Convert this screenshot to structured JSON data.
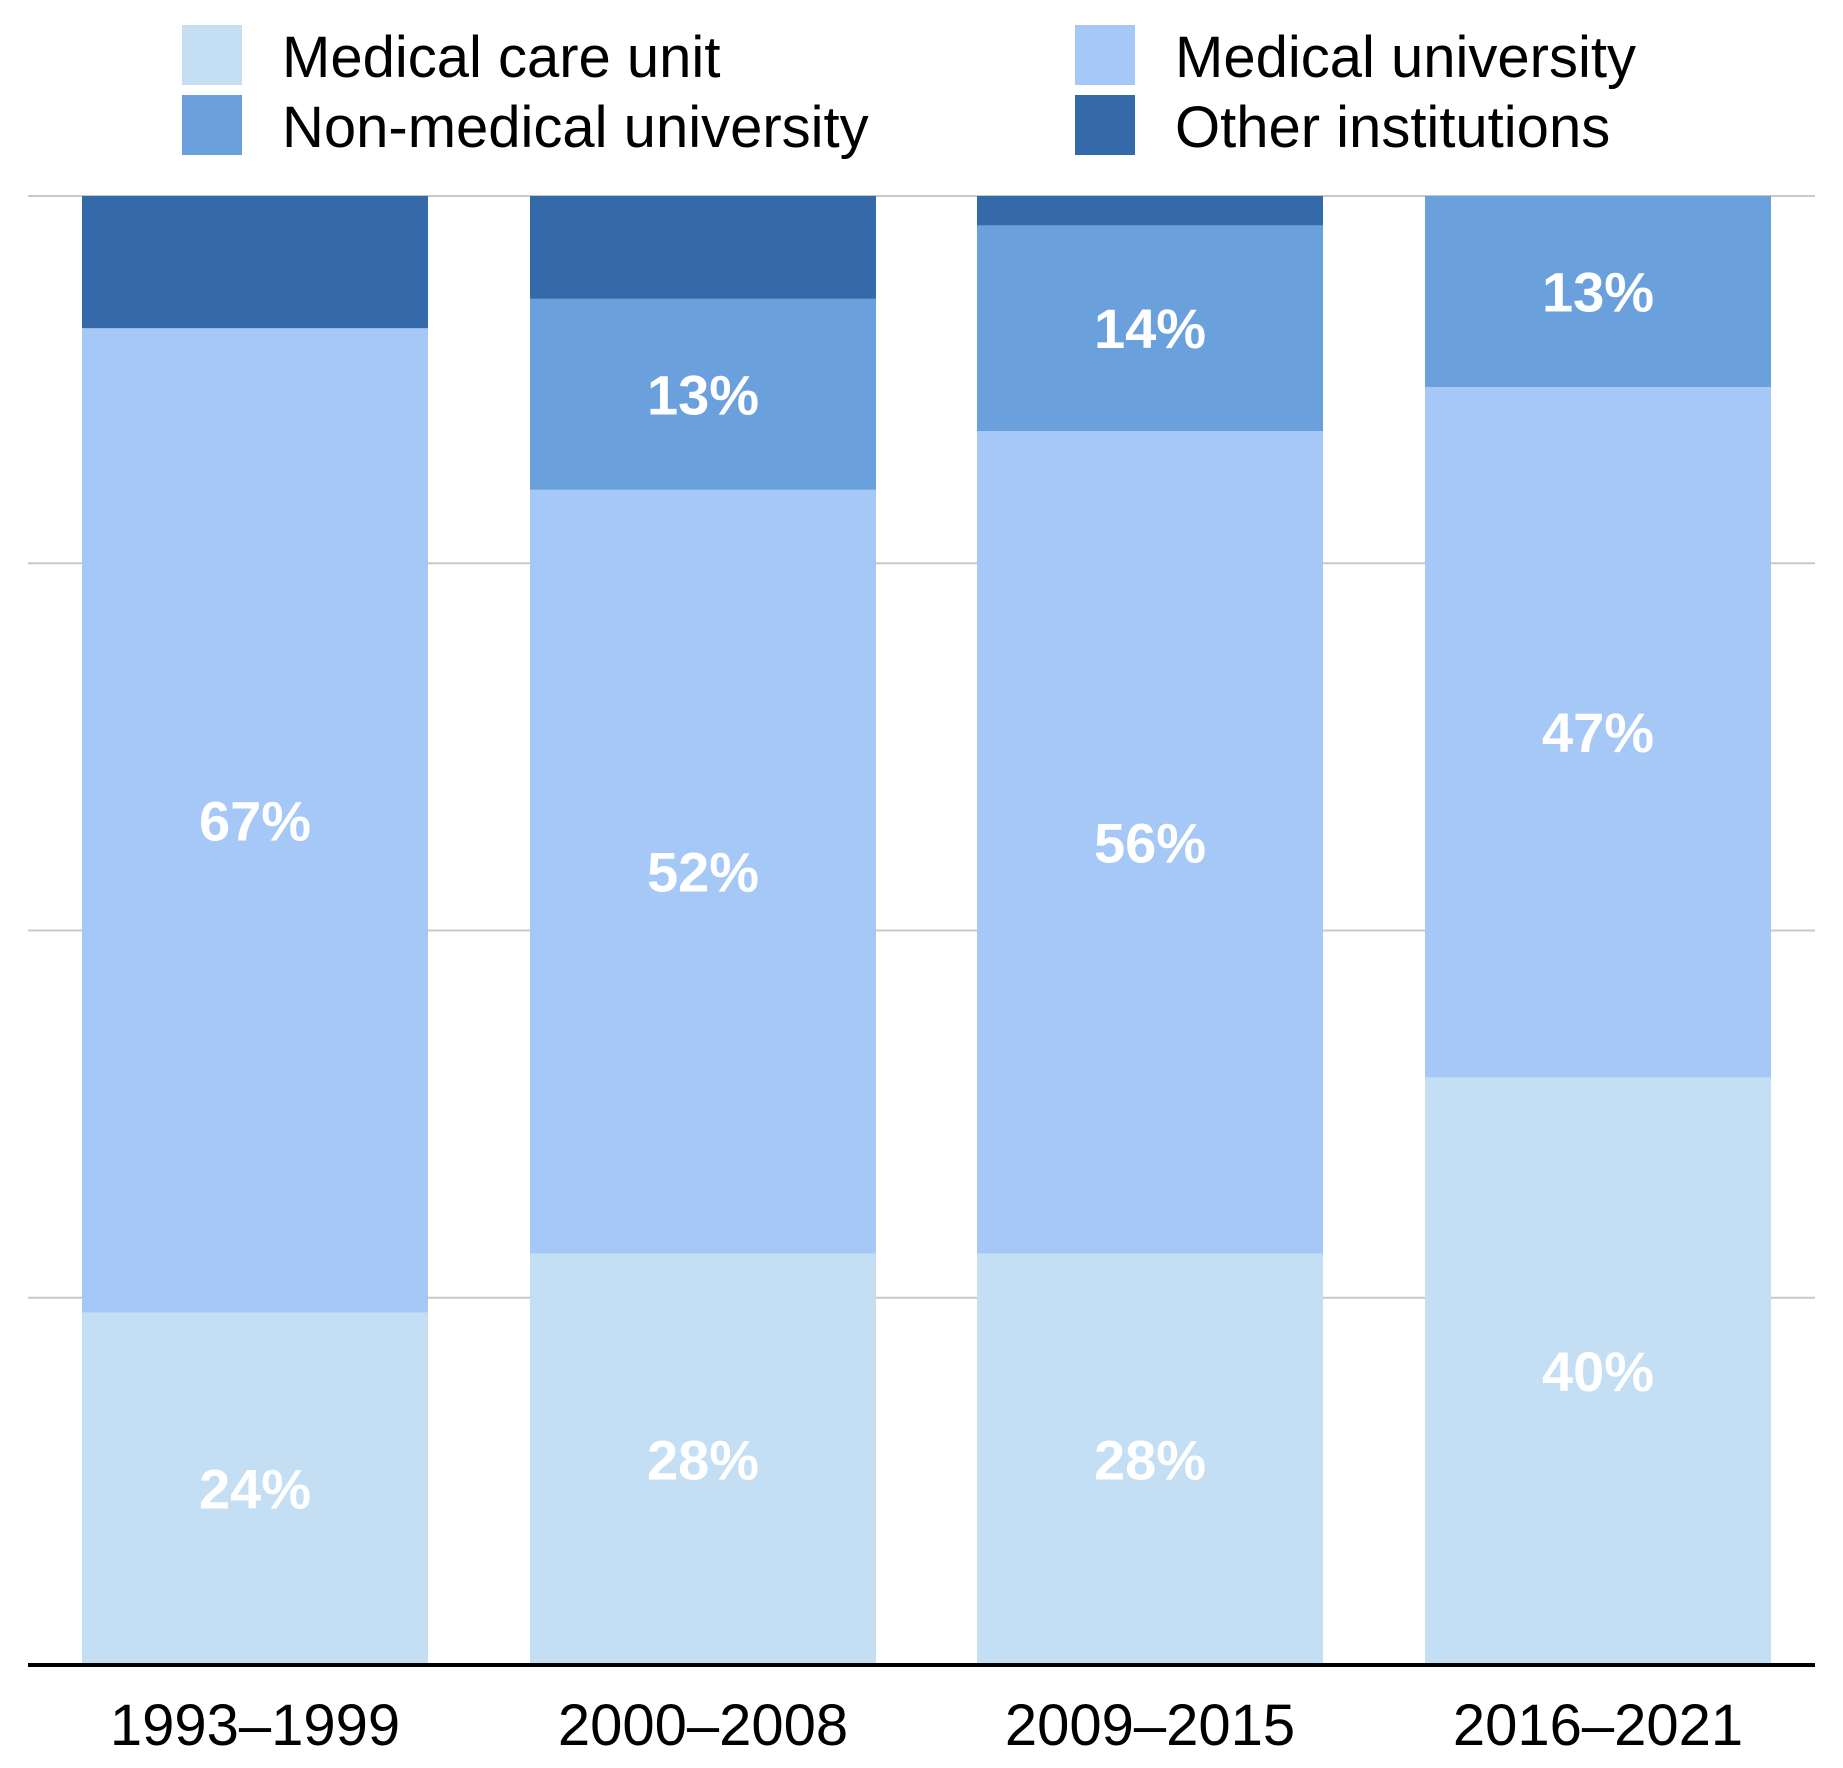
{
  "chart_data": {
    "type": "bar",
    "stacked": true,
    "title": "",
    "xlabel": "",
    "ylabel": "",
    "ylim": [
      0,
      100
    ],
    "grid": true,
    "legend_position": "top",
    "categories": [
      "1993–1999",
      "2000–2008",
      "2009–2015",
      "2016–2021"
    ],
    "series": [
      {
        "name": "Medical care unit",
        "color": "#c4dff4",
        "values": [
          24,
          28,
          28,
          40
        ],
        "labels": [
          "24%",
          "28%",
          "28%",
          "40%"
        ]
      },
      {
        "name": "Medical university",
        "color": "#a5c8f6",
        "values": [
          67,
          52,
          56,
          47
        ],
        "labels": [
          "67%",
          "52%",
          "56%",
          "47%"
        ]
      },
      {
        "name": "Non-medical university",
        "color": "#6aa0dc",
        "values": [
          0,
          13,
          14,
          13
        ],
        "labels": [
          "",
          "13%",
          "14%",
          "13%"
        ]
      },
      {
        "name": "Other institutions",
        "color": "#3469aa",
        "values": [
          9,
          7,
          2,
          0
        ],
        "labels": [
          "",
          "",
          "",
          ""
        ]
      }
    ]
  }
}
